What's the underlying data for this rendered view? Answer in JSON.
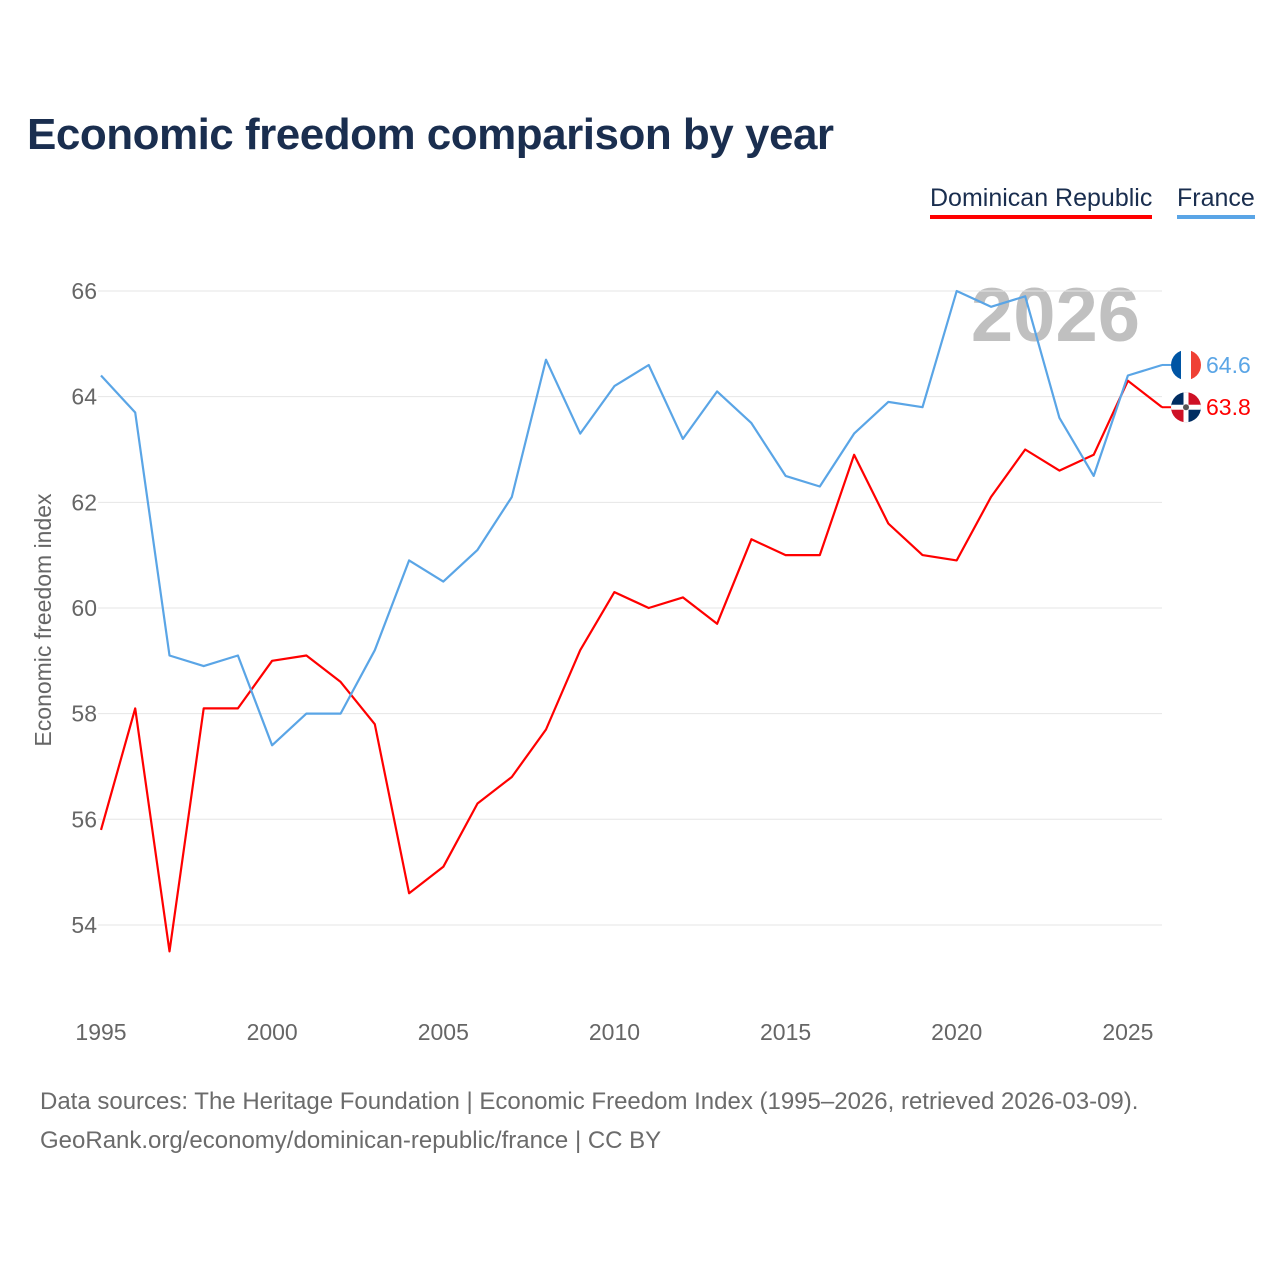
{
  "chart_data": {
    "type": "line",
    "title": "Economic freedom comparison by year",
    "xlabel": "",
    "ylabel": "Economic freedom index",
    "xlim": [
      1995,
      2026
    ],
    "ylim": [
      52.5,
      66.5
    ],
    "grid": true,
    "legend_placement": "top-right",
    "year_watermark": "2026",
    "y_ticks": [
      "54",
      "56",
      "58",
      "60",
      "62",
      "64",
      "66"
    ],
    "x_ticks": [
      "1995",
      "2000",
      "2005",
      "2010",
      "2015",
      "2020",
      "2025"
    ],
    "x": [
      1995,
      1996,
      1997,
      1998,
      1999,
      2000,
      2001,
      2002,
      2003,
      2004,
      2005,
      2006,
      2007,
      2008,
      2009,
      2010,
      2011,
      2012,
      2013,
      2014,
      2015,
      2016,
      2017,
      2018,
      2019,
      2020,
      2021,
      2022,
      2023,
      2024,
      2025,
      2026
    ],
    "series": [
      {
        "name": "Dominican Republic",
        "color": "#ff0000",
        "end_label": "63.8",
        "flag": "dominican-republic",
        "values": [
          55.8,
          58.1,
          53.5,
          58.1,
          58.1,
          59.0,
          59.1,
          58.6,
          57.8,
          54.6,
          55.1,
          56.3,
          56.8,
          57.7,
          59.2,
          60.3,
          60.0,
          60.2,
          59.7,
          61.3,
          61.0,
          61.0,
          62.9,
          61.6,
          61.0,
          60.9,
          62.1,
          63.0,
          62.6,
          62.9,
          64.3,
          63.8
        ]
      },
      {
        "name": "France",
        "color": "#5aa5e6",
        "end_label": "64.6",
        "flag": "france",
        "values": [
          64.4,
          63.7,
          59.1,
          58.9,
          59.1,
          57.4,
          58.0,
          58.0,
          59.2,
          60.9,
          60.5,
          61.1,
          62.1,
          64.7,
          63.3,
          64.2,
          64.6,
          63.2,
          64.1,
          63.5,
          62.5,
          62.3,
          63.3,
          63.9,
          63.8,
          66.0,
          65.7,
          65.9,
          63.6,
          62.5,
          64.4,
          64.6
        ]
      }
    ]
  },
  "footer": {
    "line1": "Data sources: The Heritage Foundation | Economic Freedom Index (1995–2026, retrieved 2026-03-09).",
    "line2": "GeoRank.org/economy/dominican-republic/france | CC BY"
  }
}
